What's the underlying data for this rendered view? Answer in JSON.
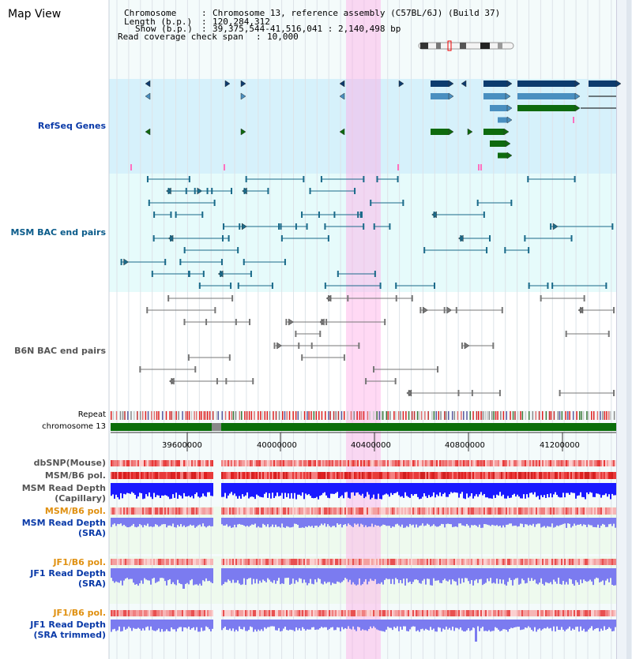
{
  "title": "Map View",
  "info": {
    "chromosome_label": "Chromosome",
    "chromosome_value": "Chromosome 13, reference assembly (C57BL/6J) (Build 37)",
    "length_label": "Length (b.p.)",
    "length_value": "120,284,312",
    "show_label": "Show (b.p.)",
    "show_value": "39,375,544-41,516,041 : 2,140,498 bp",
    "coverage_label": "Read coverage check span",
    "coverage_value": "10,000"
  },
  "tracks": {
    "refseq": "RefSeq Genes",
    "msm_bac": "MSM BAC end pairs",
    "b6n_bac": "B6N BAC end pairs",
    "repeat": "Repeat",
    "chromosome": "chromosome 13",
    "dbsnp": "dbSNP(Mouse)",
    "msm_b6_pol_1": "MSM/B6 pol.",
    "msm_read_depth_cap_1": "MSM Read Depth",
    "msm_read_depth_cap_2": "(Capillary)",
    "msm_b6_pol_2": "MSM/B6 pol.",
    "msm_read_depth_sra_1": "MSM Read Depth",
    "msm_read_depth_sra_2": "(SRA)",
    "jf1_b6_pol_1": "JF1/B6 pol.",
    "jf1_read_depth_sra_1": "JF1 Read Depth",
    "jf1_read_depth_sra_2": "(SRA)",
    "jf1_b6_pol_2": "JF1/B6 pol.",
    "jf1_read_depth_trim_1": "JF1 Read Depth",
    "jf1_read_depth_trim_2": "(SRA trimmed)"
  },
  "axis_ticks": [
    "39600000",
    "40000000",
    "40400000",
    "40800000",
    "41200000"
  ],
  "colors": {
    "refseq_dark": "#0d3b6e",
    "refseq_mid": "#4a8fc0",
    "refseq_green": "#0e6a0e",
    "msm_bac": "#1a6a8a",
    "b6n_bac": "#777777",
    "polymorphism": "#e8483a",
    "read_depth_dark": "#1a1aff",
    "read_depth_light": "#7b7bf0",
    "chromosome_bar": "#0a6e0a",
    "highlight": "#ffb0e6"
  }
}
